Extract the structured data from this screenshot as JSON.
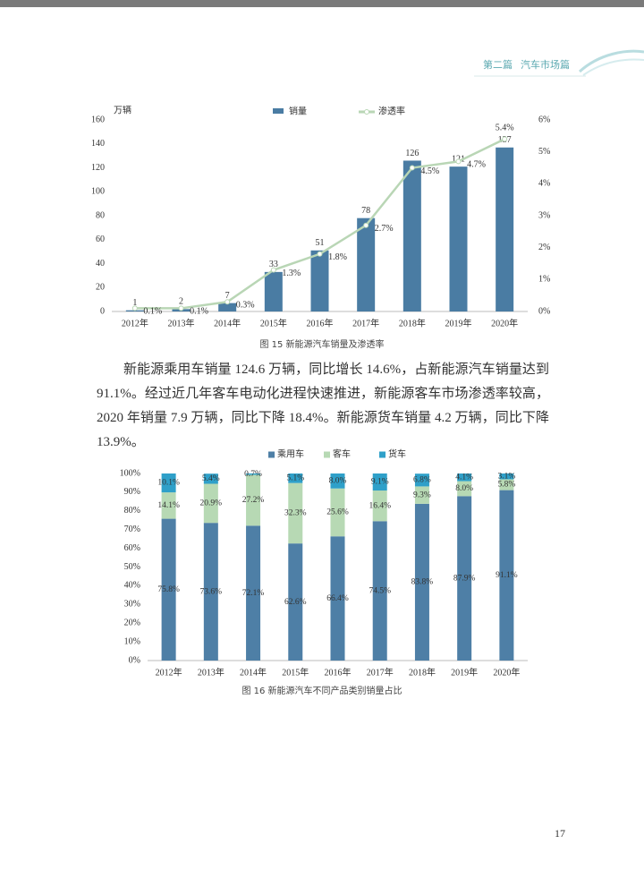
{
  "header": {
    "section": "第二篇",
    "title": "汽车市场篇"
  },
  "paragraph": "新能源乘用车销量 124.6 万辆，同比增长 14.6%，占新能源汽车销量达到 91.1%。经过近几年客车电动化进程快速推进，新能源客车市场渗透率较高，2020 年销量 7.9 万辆，同比下降 18.4%。新能源货车销量 4.2 万辆，同比下降 13.9%。",
  "page_number": "17",
  "chart_data": [
    {
      "type": "bar",
      "title": "图 15  新能源汽车销量及渗透率",
      "y_label": "万辆",
      "categories": [
        "2012年",
        "2013年",
        "2014年",
        "2015年",
        "2016年",
        "2017年",
        "2018年",
        "2019年",
        "2020年"
      ],
      "series": [
        {
          "name": "销量",
          "type": "bar",
          "color": "#4a7ca3",
          "values": [
            1,
            2,
            7,
            33,
            51,
            78,
            126,
            121,
            137
          ]
        },
        {
          "name": "渗透率",
          "type": "line",
          "axis": "y2",
          "color": "#b9d6b5",
          "values": [
            0.1,
            0.1,
            0.3,
            1.3,
            1.8,
            2.7,
            4.5,
            4.7,
            5.4
          ],
          "value_labels": [
            "0.1%",
            "0.1%",
            "0.3%",
            "1.3%",
            "1.8%",
            "2.7%",
            "4.5%",
            "4.7%",
            "5.4%"
          ]
        }
      ],
      "ylim": [
        0,
        160
      ],
      "yticks": [
        0,
        20,
        40,
        60,
        80,
        100,
        120,
        140,
        160
      ],
      "y2lim": [
        0,
        6
      ],
      "y2ticks": [
        {
          "value": 0,
          "label": "0%"
        },
        {
          "value": 1,
          "label": "1%"
        },
        {
          "value": 2,
          "label": "2%"
        },
        {
          "value": 3,
          "label": "3%"
        },
        {
          "value": 4,
          "label": "4%"
        },
        {
          "value": 5,
          "label": "5%"
        },
        {
          "value": 6,
          "label": "6%"
        }
      ]
    },
    {
      "type": "stacked_bar",
      "title": "图 16  新能源汽车不同产品类别销量占比",
      "categories": [
        "2012年",
        "2013年",
        "2014年",
        "2015年",
        "2016年",
        "2017年",
        "2018年",
        "2019年",
        "2020年"
      ],
      "series": [
        {
          "name": "乘用车",
          "color": "#4e7fa6",
          "values": [
            75.8,
            73.6,
            72.1,
            62.6,
            66.4,
            74.5,
            83.8,
            87.9,
            91.1
          ],
          "value_labels": [
            "75.8%",
            "73.6%",
            "72.1%",
            "62.6%",
            "66.4%",
            "74.5%",
            "83.8%",
            "87.9%",
            "91.1%"
          ]
        },
        {
          "name": "客车",
          "color": "#b7d9b4",
          "values": [
            14.1,
            20.9,
            27.2,
            32.3,
            25.6,
            16.4,
            9.3,
            8.0,
            5.8
          ],
          "value_labels": [
            "14.1%",
            "20.9%",
            "27.2%",
            "32.3%",
            "25.6%",
            "16.4%",
            "9.3%",
            "8.0%",
            "5.8%"
          ]
        },
        {
          "name": "货车",
          "color": "#2fa0c9",
          "values": [
            10.1,
            5.4,
            0.7,
            5.1,
            8.0,
            9.1,
            6.8,
            4.1,
            3.1
          ],
          "value_labels": [
            "10.1%",
            "5.4%",
            "0.7%",
            "5.1%",
            "8.0%",
            "9.1%",
            "6.8%",
            "4.1%",
            "3.1%"
          ]
        }
      ],
      "ylim": [
        0,
        100
      ],
      "yticks": [
        {
          "value": 0,
          "label": "0%"
        },
        {
          "value": 10,
          "label": "10%"
        },
        {
          "value": 20,
          "label": "20%"
        },
        {
          "value": 30,
          "label": "30%"
        },
        {
          "value": 40,
          "label": "40%"
        },
        {
          "value": 50,
          "label": "50%"
        },
        {
          "value": 60,
          "label": "60%"
        },
        {
          "value": 70,
          "label": "70%"
        },
        {
          "value": 80,
          "label": "80%"
        },
        {
          "value": 90,
          "label": "90%"
        },
        {
          "value": 100,
          "label": "100%"
        }
      ]
    }
  ]
}
